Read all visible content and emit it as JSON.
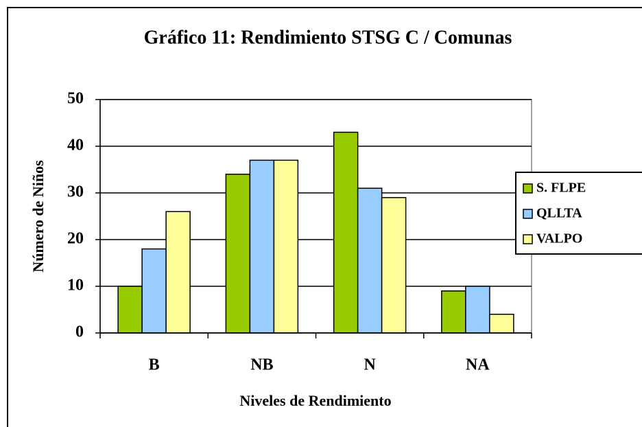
{
  "chart_data": {
    "type": "bar",
    "title": "Gráfico 11: Rendimiento STSG C / Comunas",
    "x_label": "Niveles de Rendimiento",
    "y_label": "Número de Niños",
    "categories": [
      "B",
      "NB",
      "N",
      "NA"
    ],
    "series": [
      {
        "name": "S. FLPE",
        "color": "#99cc00",
        "values": [
          10,
          34,
          43,
          9
        ]
      },
      {
        "name": "QLLTA",
        "color": "#99ccff",
        "values": [
          18,
          37,
          31,
          10
        ]
      },
      {
        "name": "VALPO",
        "color": "#ffff99",
        "values": [
          26,
          37,
          29,
          4
        ]
      }
    ],
    "ylim": [
      0,
      50
    ],
    "yticks": [
      0,
      10,
      20,
      30,
      40,
      50
    ],
    "grid": true,
    "legend": "right"
  }
}
